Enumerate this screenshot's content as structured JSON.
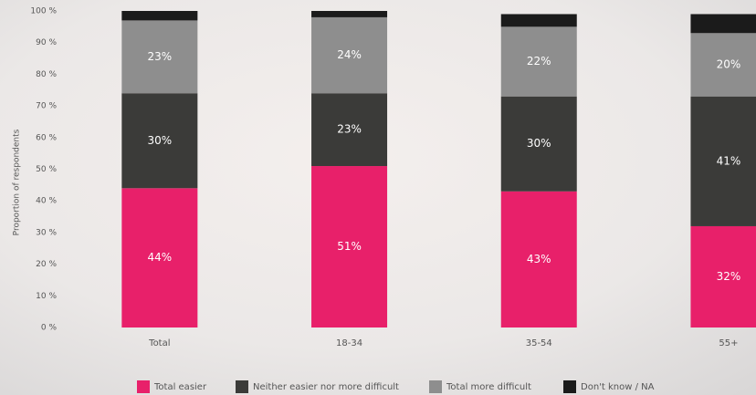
{
  "chart_data": {
    "type": "stacked-bar",
    "y_label": "Proportion of respondents",
    "categories": [
      "Total",
      "18-34",
      "35-54",
      "55+"
    ],
    "series": [
      {
        "name": "Total easier",
        "color": "#e8206a",
        "values": [
          44,
          51,
          43,
          32
        ],
        "value_labels": [
          "44%",
          "51%",
          "43%",
          "32%"
        ]
      },
      {
        "name": "Neither easier nor more difficult",
        "color": "#3b3b39",
        "values": [
          30,
          23,
          30,
          41
        ],
        "value_labels": [
          "30%",
          "23%",
          "30%",
          "41%"
        ]
      },
      {
        "name": "Total more difficult",
        "color": "#8e8e8e",
        "values": [
          23,
          24,
          22,
          20
        ],
        "value_labels": [
          "23%",
          "24%",
          "22%",
          "20%"
        ]
      },
      {
        "name": "Don't know / NA",
        "color": "#1b1b1b",
        "values": [
          3,
          2,
          4,
          6
        ]
      }
    ],
    "ylim": [
      0,
      100
    ],
    "yticks": [
      {
        "value": 0,
        "label": "0 %"
      },
      {
        "value": 10,
        "label": "10 %"
      },
      {
        "value": 20,
        "label": "20 %"
      },
      {
        "value": 30,
        "label": "30 %"
      },
      {
        "value": 40,
        "label": "40 %"
      },
      {
        "value": 50,
        "label": "50 %"
      },
      {
        "value": 60,
        "label": "60 %"
      },
      {
        "value": 70,
        "label": "70 %"
      },
      {
        "value": 80,
        "label": "80 %"
      },
      {
        "value": 90,
        "label": "90 %"
      },
      {
        "value": 100,
        "label": "100 %"
      }
    ]
  }
}
